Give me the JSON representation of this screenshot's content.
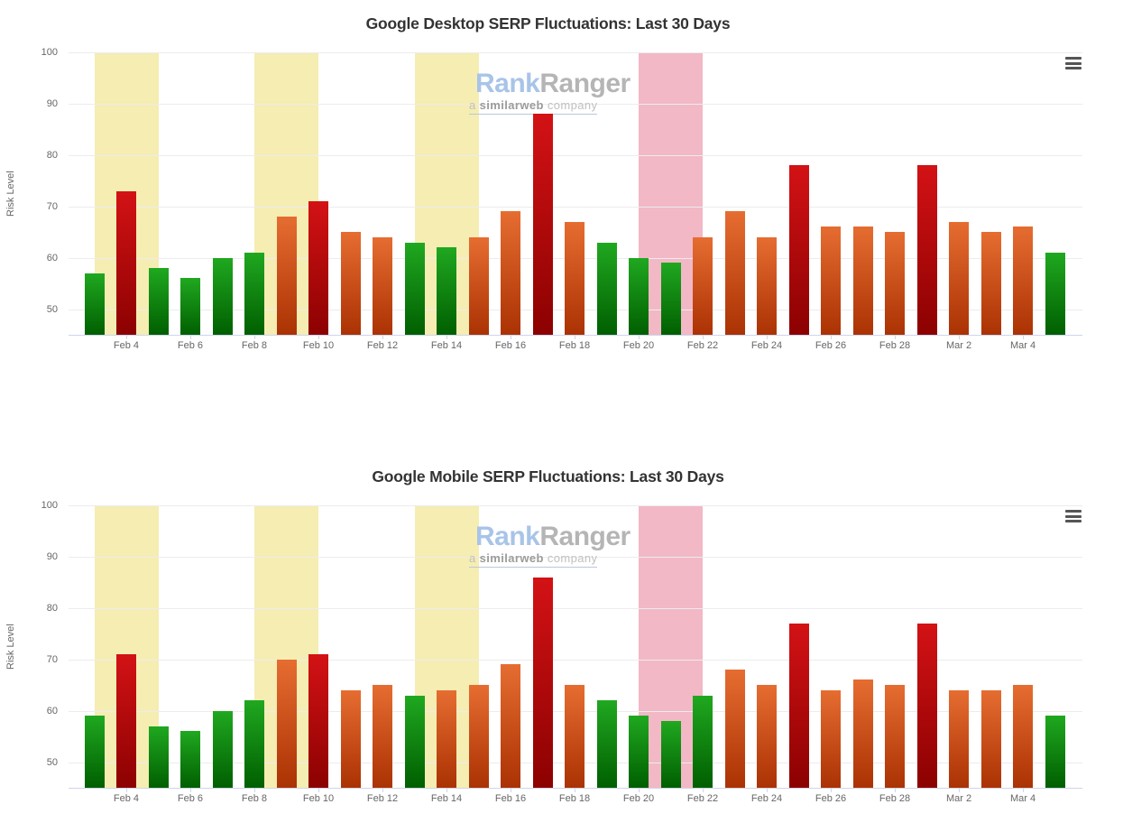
{
  "page": {
    "background_color": "#ffffff"
  },
  "icons": {
    "context_menu": "hamburger-menu-icon"
  },
  "risk_colors": {
    "low": {
      "max": 63,
      "top": "#20a820",
      "bottom": "#005f00"
    },
    "medium": {
      "max": 70,
      "top": "#e66d31",
      "bottom": "#ab3203"
    },
    "high": {
      "max": 100,
      "top": "#d31215",
      "bottom": "#8c0101"
    }
  },
  "watermark": {
    "brand_part1": "Rank",
    "brand_part2": "Ranger",
    "brand_part1_color": "#a8c4e8",
    "brand_part2_color": "#b5b5b5",
    "tagline_prefix": "a ",
    "tagline_bold": "similarweb",
    "tagline_suffix": " company",
    "tagline_color": "#c0c0c0",
    "tagline_bold_color": "#9b9b9b"
  },
  "chart_data": [
    {
      "type": "bar",
      "title": "Google Desktop SERP Fluctuations: Last 30 Days",
      "ylabel": "Risk Level",
      "ylim": [
        45,
        100
      ],
      "yticks": [
        100,
        90,
        80,
        70,
        60,
        50
      ],
      "grid": true,
      "legend": false,
      "categories": [
        "Feb 3",
        "Feb 4",
        "Feb 5",
        "Feb 6",
        "Feb 7",
        "Feb 8",
        "Feb 9",
        "Feb 10",
        "Feb 11",
        "Feb 12",
        "Feb 13",
        "Feb 14",
        "Feb 15",
        "Feb 16",
        "Feb 17",
        "Feb 18",
        "Feb 19",
        "Feb 20",
        "Feb 21",
        "Feb 22",
        "Feb 23",
        "Feb 24",
        "Feb 25",
        "Feb 26",
        "Feb 27",
        "Feb 28",
        "Mar 1",
        "Mar 2",
        "Mar 3",
        "Mar 4",
        "Mar 5"
      ],
      "values": [
        57,
        73,
        58,
        56,
        60,
        61,
        68,
        71,
        65,
        64,
        63,
        62,
        64,
        69,
        88,
        67,
        63,
        60,
        59,
        64,
        69,
        64,
        78,
        66,
        66,
        65,
        78,
        67,
        65,
        66,
        61
      ],
      "xticks": [
        {
          "index": 1,
          "label": "Feb 4"
        },
        {
          "index": 3,
          "label": "Feb 6"
        },
        {
          "index": 5,
          "label": "Feb 8"
        },
        {
          "index": 7,
          "label": "Feb 10"
        },
        {
          "index": 9,
          "label": "Feb 12"
        },
        {
          "index": 11,
          "label": "Feb 14"
        },
        {
          "index": 13,
          "label": "Feb 16"
        },
        {
          "index": 15,
          "label": "Feb 18"
        },
        {
          "index": 17,
          "label": "Feb 20"
        },
        {
          "index": 19,
          "label": "Feb 22"
        },
        {
          "index": 21,
          "label": "Feb 24"
        },
        {
          "index": 23,
          "label": "Feb 26"
        },
        {
          "index": 25,
          "label": "Feb 28"
        },
        {
          "index": 27,
          "label": "Mar 2"
        },
        {
          "index": 29,
          "label": "Mar 4"
        }
      ],
      "plot_bands": [
        {
          "name": "highlight-band-yellow",
          "center_index": 1,
          "days_span": 2,
          "color": "#f5edb2"
        },
        {
          "name": "highlight-band-yellow",
          "center_index": 6,
          "days_span": 2,
          "color": "#f5edb2"
        },
        {
          "name": "highlight-band-yellow",
          "center_index": 11,
          "days_span": 2,
          "color": "#f5edb2"
        },
        {
          "name": "highlight-band-pink",
          "center_index": 18,
          "days_span": 2,
          "color": "#f2b8c5"
        }
      ]
    },
    {
      "type": "bar",
      "title": "Google Mobile SERP Fluctuations: Last 30 Days",
      "ylabel": "Risk Level",
      "ylim": [
        45,
        100
      ],
      "yticks": [
        100,
        90,
        80,
        70,
        60,
        50
      ],
      "grid": true,
      "legend": false,
      "categories": [
        "Feb 3",
        "Feb 4",
        "Feb 5",
        "Feb 6",
        "Feb 7",
        "Feb 8",
        "Feb 9",
        "Feb 10",
        "Feb 11",
        "Feb 12",
        "Feb 13",
        "Feb 14",
        "Feb 15",
        "Feb 16",
        "Feb 17",
        "Feb 18",
        "Feb 19",
        "Feb 20",
        "Feb 21",
        "Feb 22",
        "Feb 23",
        "Feb 24",
        "Feb 25",
        "Feb 26",
        "Feb 27",
        "Feb 28",
        "Mar 1",
        "Mar 2",
        "Mar 3",
        "Mar 4",
        "Mar 5"
      ],
      "values": [
        59,
        71,
        57,
        56,
        60,
        62,
        70,
        71,
        64,
        65,
        63,
        64,
        65,
        69,
        86,
        65,
        62,
        59,
        58,
        63,
        68,
        65,
        77,
        64,
        66,
        65,
        77,
        64,
        64,
        65,
        59
      ],
      "xticks": [
        {
          "index": 1,
          "label": "Feb 4"
        },
        {
          "index": 3,
          "label": "Feb 6"
        },
        {
          "index": 5,
          "label": "Feb 8"
        },
        {
          "index": 7,
          "label": "Feb 10"
        },
        {
          "index": 9,
          "label": "Feb 12"
        },
        {
          "index": 11,
          "label": "Feb 14"
        },
        {
          "index": 13,
          "label": "Feb 16"
        },
        {
          "index": 15,
          "label": "Feb 18"
        },
        {
          "index": 17,
          "label": "Feb 20"
        },
        {
          "index": 19,
          "label": "Feb 22"
        },
        {
          "index": 21,
          "label": "Feb 24"
        },
        {
          "index": 23,
          "label": "Feb 26"
        },
        {
          "index": 25,
          "label": "Feb 28"
        },
        {
          "index": 27,
          "label": "Mar 2"
        },
        {
          "index": 29,
          "label": "Mar 4"
        }
      ],
      "plot_bands": [
        {
          "name": "highlight-band-yellow",
          "center_index": 1,
          "days_span": 2,
          "color": "#f5edb2"
        },
        {
          "name": "highlight-band-yellow",
          "center_index": 6,
          "days_span": 2,
          "color": "#f5edb2"
        },
        {
          "name": "highlight-band-yellow",
          "center_index": 11,
          "days_span": 2,
          "color": "#f5edb2"
        },
        {
          "name": "highlight-band-pink",
          "center_index": 18,
          "days_span": 2,
          "color": "#f2b8c5"
        }
      ]
    }
  ]
}
